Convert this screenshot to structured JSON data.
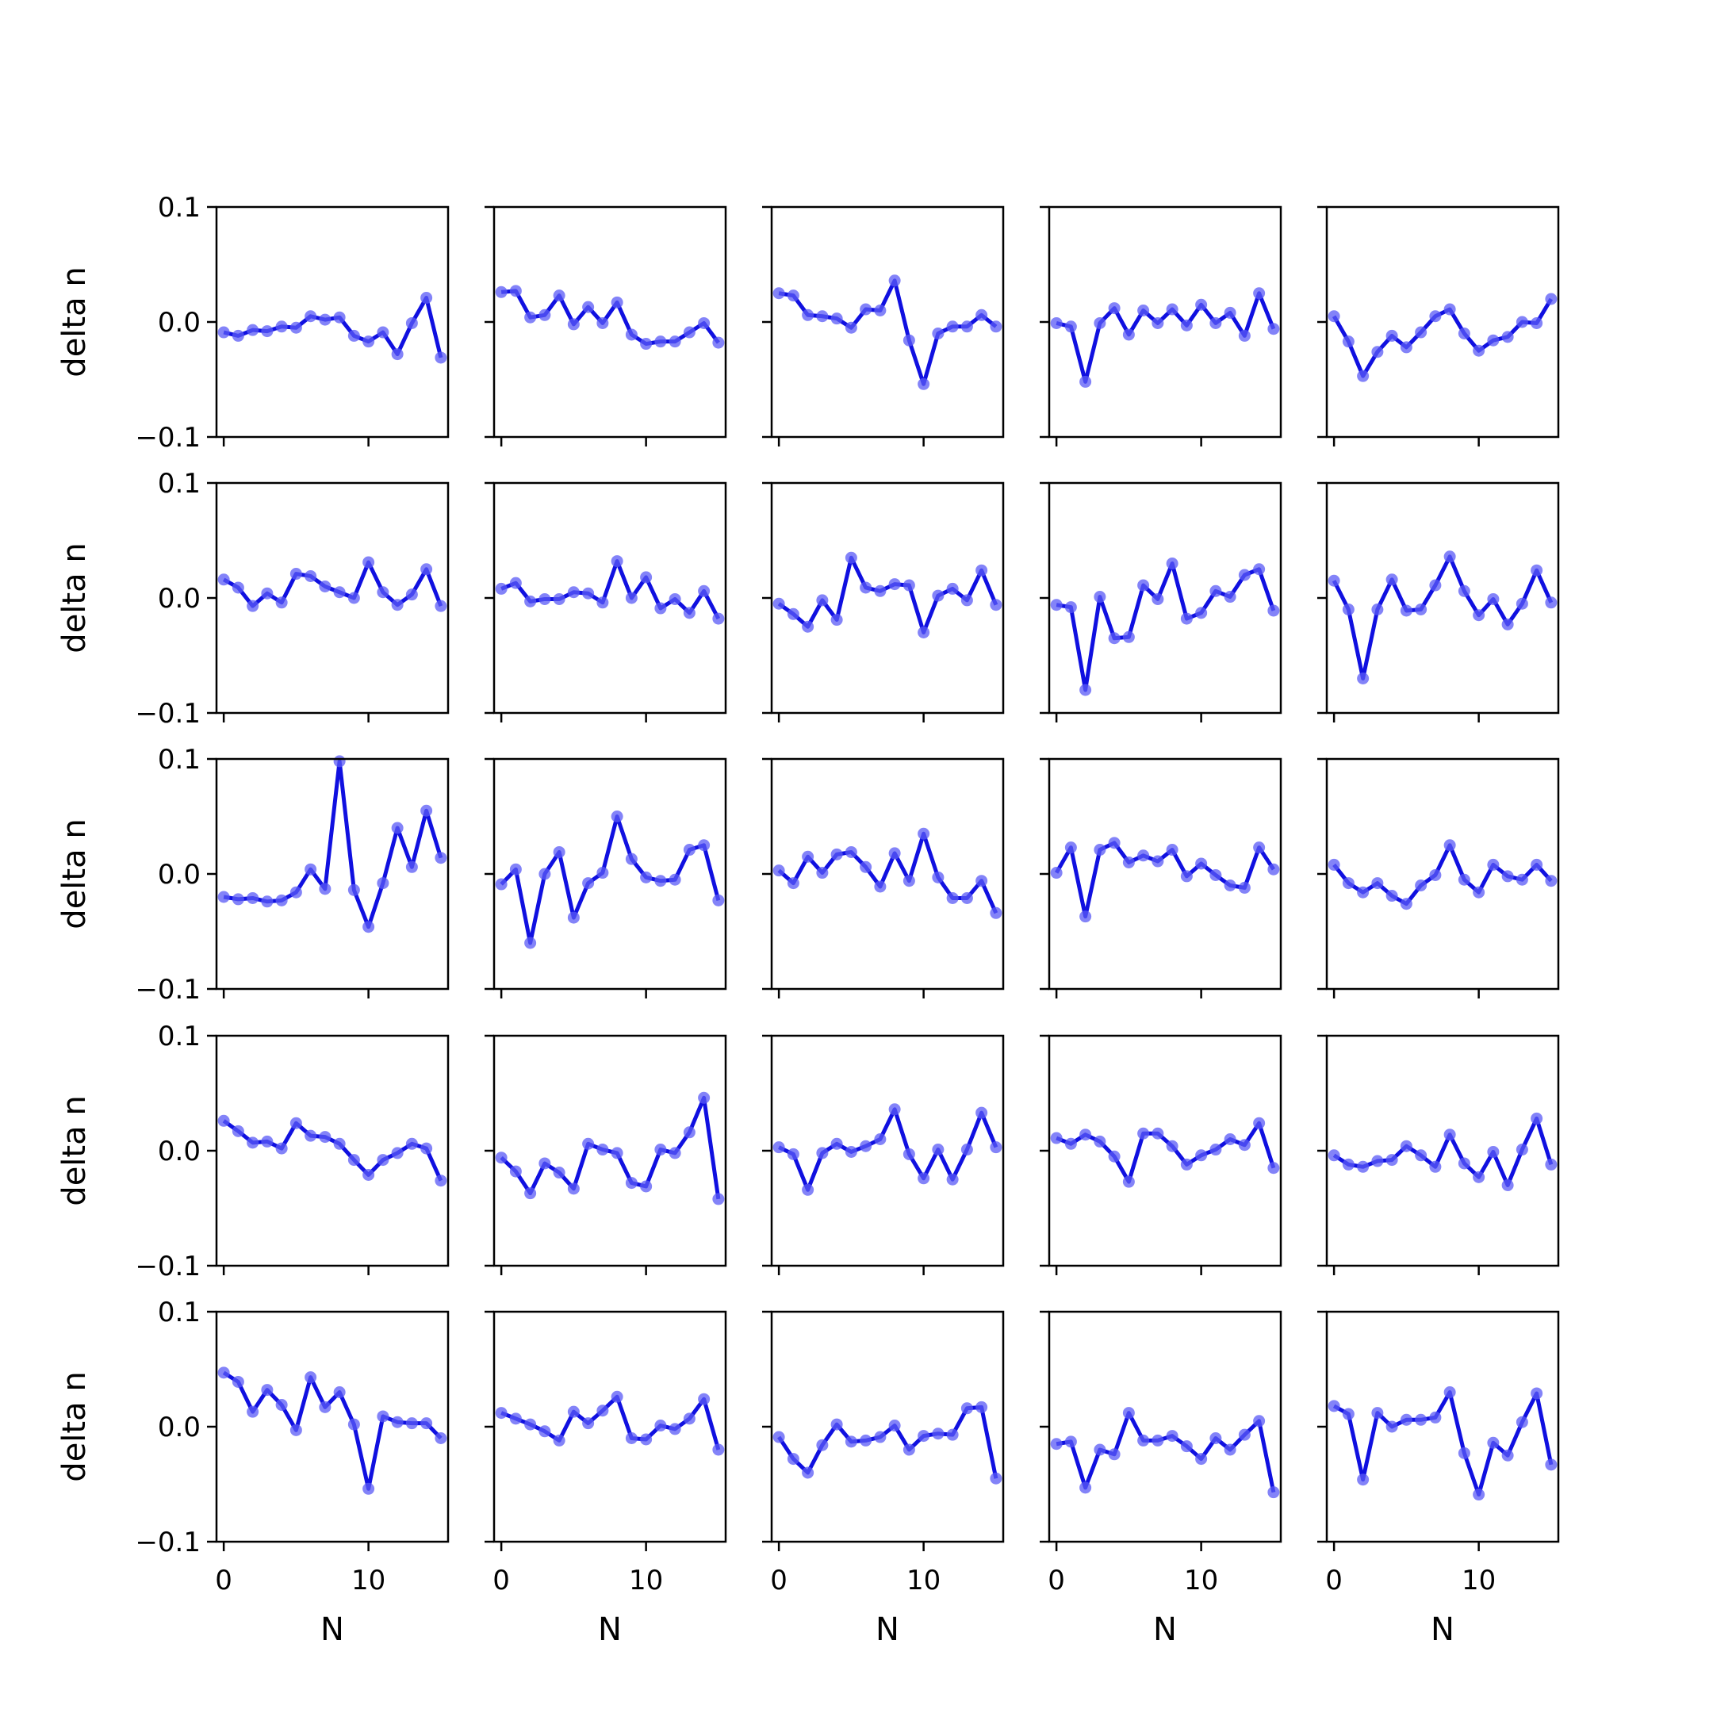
{
  "chart_data": {
    "type": "line",
    "grid": false,
    "rows": 5,
    "cols": 5,
    "xlabel": "N",
    "ylabel": "delta n",
    "xlim": [
      -0.5,
      15.5
    ],
    "ylim": [
      -0.1,
      0.1
    ],
    "xticks": [
      0,
      10
    ],
    "xtick_labels": [
      "0",
      "10"
    ],
    "yticks": [
      -0.1,
      0.0,
      0.1
    ],
    "ytick_labels": [
      "−0.1",
      "0.0",
      "0.1"
    ],
    "colors": {
      "line": "#1010e0",
      "marker": "#5a5af5",
      "axes": "#000000"
    },
    "x": [
      0,
      1,
      2,
      3,
      4,
      5,
      6,
      7,
      8,
      9,
      10,
      11,
      12,
      13,
      14,
      15
    ],
    "panels": [
      [
        -0.009,
        -0.012,
        -0.007,
        -0.008,
        -0.004,
        -0.005,
        0.005,
        0.002,
        0.004,
        -0.012,
        -0.017,
        -0.009,
        -0.028,
        -0.001,
        0.021,
        -0.031
      ],
      [
        0.026,
        0.027,
        0.004,
        0.006,
        0.023,
        -0.002,
        0.013,
        -0.001,
        0.017,
        -0.011,
        -0.019,
        -0.017,
        -0.017,
        -0.009,
        -0.001,
        -0.018
      ],
      [
        0.025,
        0.023,
        0.006,
        0.005,
        0.003,
        -0.005,
        0.011,
        0.01,
        0.036,
        -0.016,
        -0.054,
        -0.01,
        -0.004,
        -0.004,
        0.006,
        -0.004
      ],
      [
        -0.001,
        -0.004,
        -0.052,
        -0.001,
        0.012,
        -0.011,
        0.01,
        -0.001,
        0.011,
        -0.003,
        0.015,
        -0.001,
        0.008,
        -0.012,
        0.025,
        -0.006
      ],
      [
        0.005,
        -0.017,
        -0.047,
        -0.026,
        -0.012,
        -0.022,
        -0.009,
        0.005,
        0.011,
        -0.01,
        -0.025,
        -0.016,
        -0.013,
        0.0,
        -0.001,
        0.02
      ],
      [
        0.016,
        0.009,
        -0.007,
        0.004,
        -0.004,
        0.021,
        0.019,
        0.01,
        0.005,
        0.0,
        0.031,
        0.005,
        -0.006,
        0.003,
        0.025,
        -0.007
      ],
      [
        0.008,
        0.013,
        -0.003,
        -0.001,
        -0.001,
        0.005,
        0.004,
        -0.004,
        0.032,
        0.0,
        0.018,
        -0.009,
        -0.001,
        -0.013,
        0.006,
        -0.018
      ],
      [
        -0.005,
        -0.014,
        -0.025,
        -0.002,
        -0.019,
        0.035,
        0.009,
        0.006,
        0.012,
        0.011,
        -0.03,
        0.002,
        0.008,
        -0.002,
        0.024,
        -0.006
      ],
      [
        -0.006,
        -0.008,
        -0.08,
        0.001,
        -0.035,
        -0.034,
        0.011,
        -0.001,
        0.03,
        -0.018,
        -0.013,
        0.006,
        0.001,
        0.02,
        0.025,
        -0.011
      ],
      [
        0.015,
        -0.01,
        -0.07,
        -0.01,
        0.016,
        -0.011,
        -0.01,
        0.011,
        0.036,
        0.006,
        -0.015,
        -0.001,
        -0.023,
        -0.005,
        0.024,
        -0.004
      ],
      [
        -0.02,
        -0.022,
        -0.021,
        -0.024,
        -0.023,
        -0.016,
        0.004,
        -0.013,
        0.098,
        -0.014,
        -0.046,
        -0.008,
        0.04,
        0.006,
        0.055,
        0.014
      ],
      [
        -0.009,
        0.004,
        -0.06,
        0.0,
        0.019,
        -0.038,
        -0.008,
        0.001,
        0.05,
        0.013,
        -0.003,
        -0.006,
        -0.005,
        0.021,
        0.025,
        -0.023
      ],
      [
        0.003,
        -0.008,
        0.015,
        0.001,
        0.017,
        0.019,
        0.006,
        -0.011,
        0.018,
        -0.006,
        0.035,
        -0.003,
        -0.021,
        -0.021,
        -0.006,
        -0.034
      ],
      [
        0.001,
        0.023,
        -0.037,
        0.021,
        0.027,
        0.01,
        0.016,
        0.011,
        0.021,
        -0.002,
        0.009,
        -0.001,
        -0.01,
        -0.012,
        0.023,
        0.004
      ],
      [
        0.008,
        -0.008,
        -0.016,
        -0.008,
        -0.019,
        -0.026,
        -0.01,
        -0.001,
        0.025,
        -0.005,
        -0.016,
        0.008,
        -0.002,
        -0.005,
        0.008,
        -0.006
      ],
      [
        0.026,
        0.017,
        0.007,
        0.008,
        0.002,
        0.024,
        0.013,
        0.012,
        0.006,
        -0.008,
        -0.021,
        -0.008,
        -0.002,
        0.006,
        0.002,
        -0.026
      ],
      [
        -0.006,
        -0.018,
        -0.037,
        -0.011,
        -0.019,
        -0.033,
        0.006,
        0.001,
        -0.002,
        -0.028,
        -0.031,
        0.001,
        -0.002,
        0.016,
        0.046,
        -0.042
      ],
      [
        0.003,
        -0.003,
        -0.034,
        -0.002,
        0.006,
        -0.001,
        0.004,
        0.01,
        0.036,
        -0.003,
        -0.024,
        0.001,
        -0.025,
        0.001,
        0.033,
        0.003
      ],
      [
        0.011,
        0.006,
        0.014,
        0.008,
        -0.005,
        -0.027,
        0.015,
        0.015,
        0.004,
        -0.012,
        -0.004,
        0.001,
        0.01,
        0.005,
        0.024,
        -0.015
      ],
      [
        -0.004,
        -0.012,
        -0.014,
        -0.009,
        -0.008,
        0.004,
        -0.004,
        -0.014,
        0.014,
        -0.011,
        -0.023,
        -0.001,
        -0.03,
        0.001,
        0.028,
        -0.012
      ],
      [
        0.047,
        0.039,
        0.013,
        0.032,
        0.019,
        -0.003,
        0.043,
        0.017,
        0.03,
        0.002,
        -0.054,
        0.009,
        0.004,
        0.003,
        0.003,
        -0.01
      ],
      [
        0.012,
        0.007,
        0.002,
        -0.004,
        -0.012,
        0.013,
        0.003,
        0.014,
        0.026,
        -0.01,
        -0.011,
        0.001,
        -0.002,
        0.007,
        0.024,
        -0.02
      ],
      [
        -0.009,
        -0.028,
        -0.04,
        -0.016,
        0.002,
        -0.013,
        -0.012,
        -0.009,
        0.001,
        -0.02,
        -0.008,
        -0.006,
        -0.007,
        0.016,
        0.017,
        -0.045
      ],
      [
        -0.015,
        -0.013,
        -0.053,
        -0.02,
        -0.024,
        0.012,
        -0.012,
        -0.012,
        -0.008,
        -0.017,
        -0.028,
        -0.01,
        -0.02,
        -0.007,
        0.005,
        -0.057
      ],
      [
        0.018,
        0.011,
        -0.046,
        0.012,
        0.0,
        0.006,
        0.006,
        0.008,
        0.03,
        -0.023,
        -0.059,
        -0.014,
        -0.025,
        0.004,
        0.029,
        -0.033
      ]
    ]
  }
}
